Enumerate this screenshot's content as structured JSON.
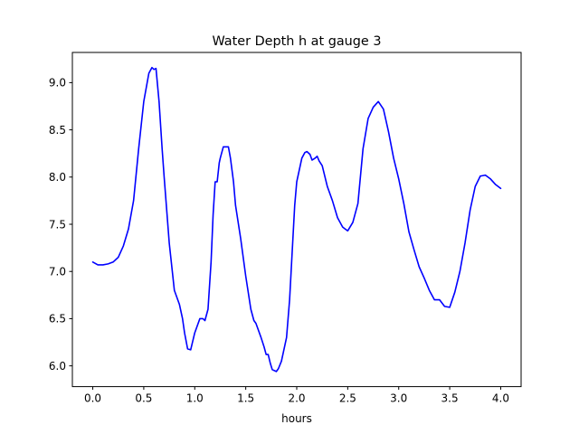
{
  "chart_data": {
    "type": "line",
    "title": "Water Depth h at gauge 3",
    "xlabel": "hours",
    "ylabel": "",
    "xlim": [
      -0.2,
      4.2
    ],
    "ylim": [
      5.78,
      9.32
    ],
    "xticks": [
      0.0,
      0.5,
      1.0,
      1.5,
      2.0,
      2.5,
      3.0,
      3.5,
      4.0
    ],
    "xtick_labels": [
      "0.0",
      "0.5",
      "1.0",
      "1.5",
      "2.0",
      "2.5",
      "3.0",
      "3.5",
      "4.0"
    ],
    "yticks": [
      6.0,
      6.5,
      7.0,
      7.5,
      8.0,
      8.5,
      9.0
    ],
    "ytick_labels": [
      "6.0",
      "6.5",
      "7.0",
      "7.5",
      "8.0",
      "8.5",
      "9.0"
    ],
    "grid": false,
    "series": [
      {
        "color": "#0000ff",
        "x": [
          0.0,
          0.05,
          0.1,
          0.15,
          0.2,
          0.25,
          0.3,
          0.35,
          0.4,
          0.45,
          0.48,
          0.5,
          0.55,
          0.58,
          0.6,
          0.62,
          0.65,
          0.68,
          0.7,
          0.75,
          0.8,
          0.85,
          0.88,
          0.9,
          0.93,
          0.96,
          1.0,
          1.05,
          1.08,
          1.1,
          1.13,
          1.16,
          1.18,
          1.2,
          1.22,
          1.24,
          1.25,
          1.28,
          1.3,
          1.33,
          1.35,
          1.38,
          1.4,
          1.45,
          1.5,
          1.55,
          1.58,
          1.6,
          1.65,
          1.68,
          1.7,
          1.72,
          1.74,
          1.76,
          1.8,
          1.82,
          1.85,
          1.9,
          1.93,
          1.95,
          1.98,
          2.0,
          2.05,
          2.08,
          2.1,
          2.13,
          2.15,
          2.18,
          2.2,
          2.22,
          2.25,
          2.3,
          2.35,
          2.4,
          2.45,
          2.5,
          2.55,
          2.6,
          2.65,
          2.7,
          2.75,
          2.8,
          2.85,
          2.9,
          2.95,
          3.0,
          3.05,
          3.1,
          3.15,
          3.2,
          3.25,
          3.3,
          3.35,
          3.4,
          3.45,
          3.5,
          3.55,
          3.6,
          3.65,
          3.7,
          3.75,
          3.8,
          3.85,
          3.9,
          3.95,
          4.0
        ],
        "y": [
          7.1,
          7.07,
          7.07,
          7.08,
          7.1,
          7.15,
          7.27,
          7.45,
          7.75,
          8.3,
          8.6,
          8.8,
          9.1,
          9.16,
          9.14,
          9.15,
          8.8,
          8.3,
          8.0,
          7.3,
          6.8,
          6.65,
          6.5,
          6.35,
          6.18,
          6.17,
          6.35,
          6.5,
          6.5,
          6.48,
          6.6,
          7.1,
          7.6,
          7.95,
          7.95,
          8.15,
          8.2,
          8.32,
          8.32,
          8.32,
          8.2,
          7.95,
          7.7,
          7.35,
          6.95,
          6.6,
          6.48,
          6.45,
          6.3,
          6.2,
          6.12,
          6.12,
          6.03,
          5.96,
          5.94,
          5.97,
          6.05,
          6.3,
          6.7,
          7.1,
          7.7,
          7.95,
          8.2,
          8.26,
          8.27,
          8.24,
          8.18,
          8.2,
          8.22,
          8.17,
          8.12,
          7.9,
          7.75,
          7.57,
          7.47,
          7.43,
          7.52,
          7.72,
          8.3,
          8.62,
          8.74,
          8.8,
          8.72,
          8.48,
          8.2,
          7.98,
          7.72,
          7.42,
          7.23,
          7.05,
          6.93,
          6.8,
          6.7,
          6.7,
          6.63,
          6.62,
          6.78,
          7.0,
          7.3,
          7.65,
          7.9,
          8.01,
          8.02,
          7.98,
          7.92,
          7.88
        ]
      }
    ]
  }
}
